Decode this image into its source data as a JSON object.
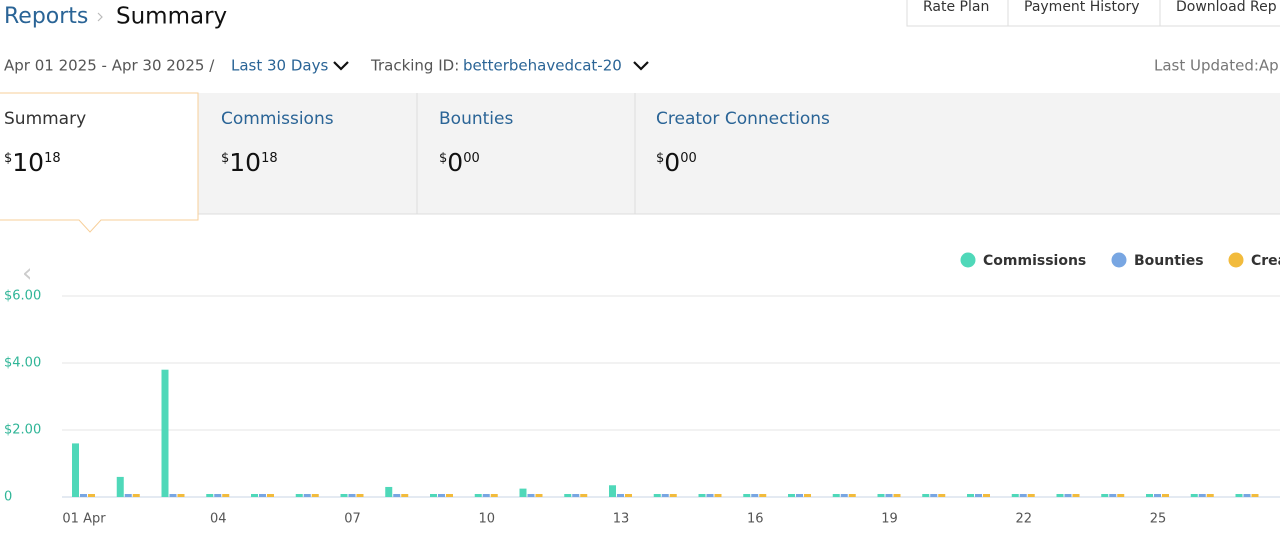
{
  "header": {
    "breadcrumb": "Reports",
    "title": "Summary",
    "buttons": [
      "Rate Plan",
      "Payment History",
      "Download Rep"
    ]
  },
  "filters": {
    "date_range": "Apr 01 2025 - Apr 30 2025 /",
    "period": "Last 30 Days",
    "tracking_label": "Tracking ID:",
    "tracking_id": "betterbehavedcat-20",
    "last_updated": "Last Updated:Ap"
  },
  "tabs": [
    {
      "label": "Summary",
      "currency": "$",
      "whole": "10",
      "fraction": "18"
    },
    {
      "label": "Commissions",
      "currency": "$",
      "whole": "10",
      "fraction": "18"
    },
    {
      "label": "Bounties",
      "currency": "$",
      "whole": "0",
      "fraction": "00"
    },
    {
      "label": "Creator Connections",
      "currency": "$",
      "whole": "0",
      "fraction": "00"
    }
  ],
  "chart": {
    "type": "bar",
    "categories": [
      "01 Apr",
      null,
      null,
      "04",
      null,
      null,
      "07",
      null,
      null,
      "10",
      null,
      null,
      "13",
      null,
      null,
      "16",
      null,
      null,
      "19",
      null,
      null,
      "22",
      null,
      null,
      "25",
      null,
      null
    ],
    "series": [
      {
        "name": "Commissions",
        "color": "#4fd8b9",
        "values": [
          1.6,
          0.6,
          3.8,
          0,
          0,
          0,
          0,
          0.3,
          0,
          0,
          0.25,
          0,
          0.35,
          0,
          0,
          0,
          0,
          0,
          0,
          0,
          0,
          0,
          0,
          0,
          0,
          0,
          0
        ]
      },
      {
        "name": "Bounties",
        "color": "#78a6e2",
        "values": [
          0,
          0,
          0,
          0,
          0,
          0,
          0,
          0,
          0,
          0,
          0,
          0,
          0,
          0,
          0,
          0,
          0,
          0,
          0,
          0,
          0,
          0,
          0,
          0,
          0,
          0,
          0
        ]
      },
      {
        "name": "Crea",
        "color": "#f2bb3c",
        "values": [
          0,
          0,
          0,
          0,
          0,
          0,
          0,
          0,
          0,
          0,
          0,
          0,
          0,
          0,
          0,
          0,
          0,
          0,
          0,
          0,
          0,
          0,
          0,
          0,
          0,
          0,
          0
        ]
      }
    ],
    "ylim": [
      0,
      6
    ],
    "yticks": [
      0,
      {
        "value": 2,
        "label": "$2.00"
      },
      {
        "value": 4,
        "label": "$4.00"
      },
      {
        "value": 6,
        "label": "$6.00"
      }
    ],
    "grid": true
  }
}
